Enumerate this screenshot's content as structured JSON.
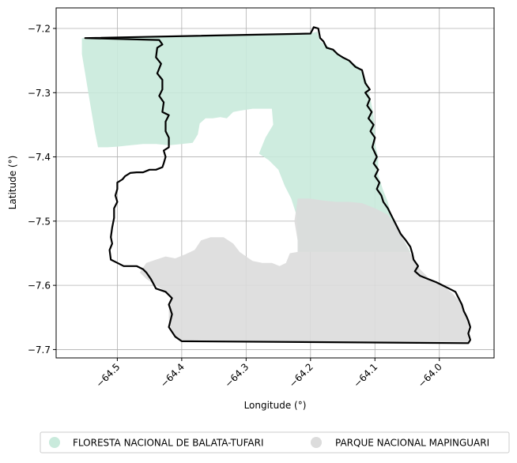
{
  "chart_data": {
    "type": "map",
    "xlabel": "Longitude (°)",
    "ylabel": "Latitude (°)",
    "xlim": [
      -64.595,
      -63.915
    ],
    "ylim": [
      -7.713,
      -7.168
    ],
    "grid": true,
    "legend_placement": "bottom-center",
    "x_ticks": [
      {
        "value": -64.5,
        "label": "−64.5"
      },
      {
        "value": -64.4,
        "label": "−64.4"
      },
      {
        "value": -64.3,
        "label": "−64.3"
      },
      {
        "value": -64.2,
        "label": "−64.2"
      },
      {
        "value": -64.1,
        "label": "−64.1"
      },
      {
        "value": -64.0,
        "label": "−64.0"
      }
    ],
    "y_ticks": [
      {
        "value": -7.2,
        "label": "−7.2"
      },
      {
        "value": -7.3,
        "label": "−7.3"
      },
      {
        "value": -7.4,
        "label": "−7.4"
      },
      {
        "value": -7.5,
        "label": "−7.5"
      },
      {
        "value": -7.6,
        "label": "−7.6"
      },
      {
        "value": -7.7,
        "label": "−7.7"
      }
    ],
    "layers": [
      {
        "name": "FLORESTA NACIONAL DE BALATA-TUFARI",
        "color": "#c9eadc",
        "opacity": 0.9,
        "polygon": [
          [
            -64.55,
            -7.215
          ],
          [
            -64.26,
            -7.21
          ],
          [
            -64.2,
            -7.208
          ],
          [
            -64.19,
            -7.205
          ],
          [
            -64.185,
            -7.22
          ],
          [
            -64.17,
            -7.23
          ],
          [
            -64.16,
            -7.238
          ],
          [
            -64.14,
            -7.25
          ],
          [
            -64.125,
            -7.26
          ],
          [
            -64.113,
            -7.282
          ],
          [
            -64.108,
            -7.305
          ],
          [
            -64.103,
            -7.33
          ],
          [
            -64.1,
            -7.355
          ],
          [
            -64.1,
            -7.38
          ],
          [
            -64.095,
            -7.4
          ],
          [
            -64.095,
            -7.428
          ],
          [
            -64.088,
            -7.45
          ],
          [
            -64.08,
            -7.47
          ],
          [
            -64.075,
            -7.49
          ],
          [
            -64.065,
            -7.51
          ],
          [
            -64.055,
            -7.53
          ],
          [
            -64.045,
            -7.548
          ],
          [
            -64.22,
            -7.548
          ],
          [
            -64.22,
            -7.53
          ],
          [
            -64.222,
            -7.49
          ],
          [
            -64.23,
            -7.465
          ],
          [
            -64.24,
            -7.445
          ],
          [
            -64.25,
            -7.42
          ],
          [
            -64.265,
            -7.405
          ],
          [
            -64.28,
            -7.395
          ],
          [
            -64.27,
            -7.37
          ],
          [
            -64.258,
            -7.35
          ],
          [
            -64.26,
            -7.325
          ],
          [
            -64.29,
            -7.325
          ],
          [
            -64.31,
            -7.328
          ],
          [
            -64.32,
            -7.33
          ],
          [
            -64.33,
            -7.34
          ],
          [
            -64.34,
            -7.338
          ],
          [
            -64.352,
            -7.34
          ],
          [
            -64.363,
            -7.34
          ],
          [
            -64.372,
            -7.348
          ],
          [
            -64.375,
            -7.365
          ],
          [
            -64.383,
            -7.378
          ],
          [
            -64.4,
            -7.38
          ],
          [
            -64.42,
            -7.382
          ],
          [
            -64.44,
            -7.38
          ],
          [
            -64.46,
            -7.38
          ],
          [
            -64.48,
            -7.382
          ],
          [
            -64.5,
            -7.384
          ],
          [
            -64.515,
            -7.385
          ],
          [
            -64.53,
            -7.385
          ],
          [
            -64.535,
            -7.36
          ],
          [
            -64.54,
            -7.33
          ],
          [
            -64.545,
            -7.3
          ],
          [
            -64.55,
            -7.27
          ],
          [
            -64.555,
            -7.24
          ],
          [
            -64.555,
            -7.215
          ]
        ]
      },
      {
        "name": "PARQUE NACIONAL MAPINGUARI",
        "color": "#dcdcdc",
        "opacity": 0.9,
        "polygon": [
          [
            -64.22,
            -7.465
          ],
          [
            -64.2,
            -7.465
          ],
          [
            -64.18,
            -7.468
          ],
          [
            -64.16,
            -7.47
          ],
          [
            -64.14,
            -7.47
          ],
          [
            -64.12,
            -7.472
          ],
          [
            -64.1,
            -7.48
          ],
          [
            -64.08,
            -7.49
          ],
          [
            -64.065,
            -7.51
          ],
          [
            -64.055,
            -7.53
          ],
          [
            -64.045,
            -7.55
          ],
          [
            -64.03,
            -7.575
          ],
          [
            -64.015,
            -7.59
          ],
          [
            -63.995,
            -7.6
          ],
          [
            -63.98,
            -7.612
          ],
          [
            -63.965,
            -7.63
          ],
          [
            -63.96,
            -7.645
          ],
          [
            -63.955,
            -7.66
          ],
          [
            -63.955,
            -7.69
          ],
          [
            -64.4,
            -7.687
          ],
          [
            -64.41,
            -7.678
          ],
          [
            -64.42,
            -7.66
          ],
          [
            -64.42,
            -7.635
          ],
          [
            -64.415,
            -7.62
          ],
          [
            -64.425,
            -7.61
          ],
          [
            -64.44,
            -7.6
          ],
          [
            -64.455,
            -7.59
          ],
          [
            -64.465,
            -7.58
          ],
          [
            -64.455,
            -7.565
          ],
          [
            -64.44,
            -7.56
          ],
          [
            -64.425,
            -7.555
          ],
          [
            -64.41,
            -7.558
          ],
          [
            -64.395,
            -7.552
          ],
          [
            -64.38,
            -7.545
          ],
          [
            -64.37,
            -7.53
          ],
          [
            -64.355,
            -7.525
          ],
          [
            -64.335,
            -7.525
          ],
          [
            -64.32,
            -7.535
          ],
          [
            -64.31,
            -7.548
          ],
          [
            -64.3,
            -7.555
          ],
          [
            -64.29,
            -7.562
          ],
          [
            -64.275,
            -7.565
          ],
          [
            -64.26,
            -7.565
          ],
          [
            -64.248,
            -7.57
          ],
          [
            -64.238,
            -7.565
          ],
          [
            -64.232,
            -7.55
          ],
          [
            -64.22,
            -7.548
          ],
          [
            -64.22,
            -7.53
          ],
          [
            -64.225,
            -7.5
          ],
          [
            -64.222,
            -7.48
          ]
        ]
      }
    ],
    "boundary": [
      [
        -64.55,
        -7.215
      ],
      [
        -64.2,
        -7.208
      ],
      [
        -64.195,
        -7.198
      ],
      [
        -64.188,
        -7.2
      ],
      [
        -64.185,
        -7.215
      ],
      [
        -64.18,
        -7.22
      ],
      [
        -64.175,
        -7.23
      ],
      [
        -64.165,
        -7.233
      ],
      [
        -64.158,
        -7.24
      ],
      [
        -64.15,
        -7.245
      ],
      [
        -64.14,
        -7.25
      ],
      [
        -64.13,
        -7.26
      ],
      [
        -64.12,
        -7.265
      ],
      [
        -64.115,
        -7.285
      ],
      [
        -64.108,
        -7.295
      ],
      [
        -64.115,
        -7.3
      ],
      [
        -64.108,
        -7.31
      ],
      [
        -64.112,
        -7.32
      ],
      [
        -64.105,
        -7.33
      ],
      [
        -64.11,
        -7.34
      ],
      [
        -64.102,
        -7.35
      ],
      [
        -64.107,
        -7.36
      ],
      [
        -64.1,
        -7.37
      ],
      [
        -64.104,
        -7.385
      ],
      [
        -64.097,
        -7.4
      ],
      [
        -64.102,
        -7.41
      ],
      [
        -64.095,
        -7.42
      ],
      [
        -64.1,
        -7.43
      ],
      [
        -64.093,
        -7.44
      ],
      [
        -64.097,
        -7.45
      ],
      [
        -64.09,
        -7.46
      ],
      [
        -64.087,
        -7.47
      ],
      [
        -64.08,
        -7.48
      ],
      [
        -64.075,
        -7.49
      ],
      [
        -64.07,
        -7.5
      ],
      [
        -64.065,
        -7.51
      ],
      [
        -64.06,
        -7.52
      ],
      [
        -64.052,
        -7.53
      ],
      [
        -64.045,
        -7.54
      ],
      [
        -64.042,
        -7.55
      ],
      [
        -64.04,
        -7.56
      ],
      [
        -64.033,
        -7.57
      ],
      [
        -64.038,
        -7.578
      ],
      [
        -64.03,
        -7.585
      ],
      [
        -64.018,
        -7.59
      ],
      [
        -64.005,
        -7.595
      ],
      [
        -63.995,
        -7.6
      ],
      [
        -63.985,
        -7.605
      ],
      [
        -63.975,
        -7.61
      ],
      [
        -63.97,
        -7.62
      ],
      [
        -63.965,
        -7.63
      ],
      [
        -63.962,
        -7.64
      ],
      [
        -63.958,
        -7.648
      ],
      [
        -63.955,
        -7.655
      ],
      [
        -63.952,
        -7.665
      ],
      [
        -63.955,
        -7.675
      ],
      [
        -63.952,
        -7.685
      ],
      [
        -63.955,
        -7.69
      ],
      [
        -64.4,
        -7.687
      ],
      [
        -64.41,
        -7.68
      ],
      [
        -64.42,
        -7.665
      ],
      [
        -64.415,
        -7.645
      ],
      [
        -64.42,
        -7.63
      ],
      [
        -64.415,
        -7.62
      ],
      [
        -64.425,
        -7.61
      ],
      [
        -64.44,
        -7.605
      ],
      [
        -64.448,
        -7.59
      ],
      [
        -64.455,
        -7.58
      ],
      [
        -64.46,
        -7.575
      ],
      [
        -64.47,
        -7.57
      ],
      [
        -64.49,
        -7.57
      ],
      [
        -64.5,
        -7.565
      ],
      [
        -64.51,
        -7.56
      ],
      [
        -64.512,
        -7.545
      ],
      [
        -64.508,
        -7.535
      ],
      [
        -64.51,
        -7.525
      ],
      [
        -64.508,
        -7.51
      ],
      [
        -64.505,
        -7.495
      ],
      [
        -64.505,
        -7.48
      ],
      [
        -64.5,
        -7.47
      ],
      [
        -64.503,
        -7.46
      ],
      [
        -64.5,
        -7.45
      ],
      [
        -64.5,
        -7.44
      ],
      [
        -64.492,
        -7.435
      ],
      [
        -64.488,
        -7.43
      ],
      [
        -64.48,
        -7.425
      ],
      [
        -64.47,
        -7.424
      ],
      [
        -64.46,
        -7.424
      ],
      [
        -64.45,
        -7.42
      ],
      [
        -64.44,
        -7.42
      ],
      [
        -64.43,
        -7.416
      ],
      [
        -64.428,
        -7.41
      ],
      [
        -64.425,
        -7.4
      ],
      [
        -64.428,
        -7.39
      ],
      [
        -64.42,
        -7.385
      ],
      [
        -64.42,
        -7.37
      ],
      [
        -64.425,
        -7.36
      ],
      [
        -64.425,
        -7.345
      ],
      [
        -64.42,
        -7.335
      ],
      [
        -64.43,
        -7.33
      ],
      [
        -64.428,
        -7.315
      ],
      [
        -64.435,
        -7.305
      ],
      [
        -64.43,
        -7.295
      ],
      [
        -64.43,
        -7.28
      ],
      [
        -64.438,
        -7.27
      ],
      [
        -64.432,
        -7.255
      ],
      [
        -64.44,
        -7.245
      ],
      [
        -64.438,
        -7.23
      ],
      [
        -64.43,
        -7.225
      ],
      [
        -64.435,
        -7.218
      ],
      [
        -64.55,
        -7.215
      ]
    ]
  },
  "legend": {
    "items": [
      {
        "label": "FLORESTA NACIONAL DE BALATA-TUFARI",
        "color": "#c9eadc"
      },
      {
        "label": "PARQUE NACIONAL MAPINGUARI",
        "color": "#dcdcdc"
      }
    ]
  }
}
